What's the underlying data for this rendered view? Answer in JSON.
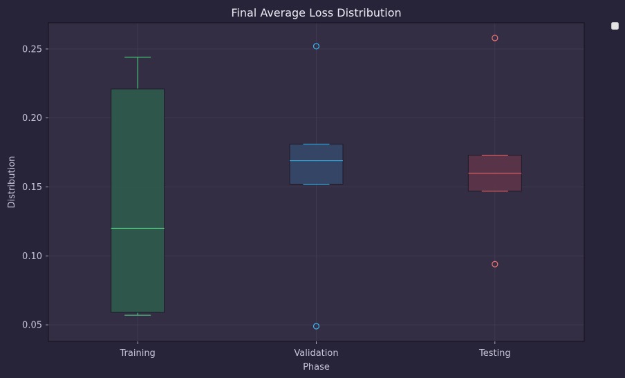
{
  "chart_data": {
    "type": "box",
    "title": "Final Average Loss Distribution",
    "xlabel": "Phase",
    "ylabel": "Distribution",
    "ylim": [
      0.038,
      0.269
    ],
    "yticks": [
      0.05,
      0.1,
      0.15,
      0.2,
      0.25
    ],
    "ytick_labels": [
      "0.05",
      "0.10",
      "0.15",
      "0.20",
      "0.25"
    ],
    "grid": true,
    "legend": {
      "placement": "top-right outside",
      "entries": []
    },
    "categories": [
      "Training",
      "Validation",
      "Testing"
    ],
    "series": [
      {
        "category": "Training",
        "color": "#4ade80",
        "fill": "#2e5a4c",
        "whisker_low": 0.057,
        "q1": 0.059,
        "median": 0.12,
        "q3": 0.221,
        "whisker_high": 0.244,
        "outliers": []
      },
      {
        "category": "Validation",
        "color": "#38bdf8",
        "fill": "#344868",
        "whisker_low": 0.152,
        "q1": 0.152,
        "median": 0.169,
        "q3": 0.181,
        "whisker_high": 0.181,
        "outliers": [
          0.252,
          0.049
        ]
      },
      {
        "category": "Testing",
        "color": "#f87171",
        "fill": "#5c3448",
        "whisker_low": 0.147,
        "q1": 0.147,
        "median": 0.16,
        "q3": 0.173,
        "whisker_high": 0.173,
        "outliers": [
          0.258,
          0.094
        ]
      }
    ]
  }
}
